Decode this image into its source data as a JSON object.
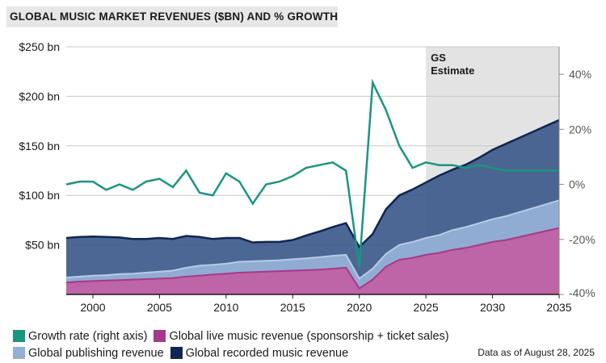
{
  "title": "GLOBAL MUSIC MARKET REVENUES ($BN) AND % GROWTH",
  "footnote": "Data as of August 28, 2025",
  "estimate_label_line1": "GS",
  "estimate_label_line2": "Estimate",
  "colors": {
    "growth": "#1a9580",
    "live": "#c061a3",
    "live_line": "#a8388a",
    "publishing": "#93b0d6",
    "recorded": "#3d5a8a",
    "recorded_line": "#0f2552",
    "estimate_shade": "#e3e3e3"
  },
  "legend": [
    {
      "label": "Growth rate (right axis)",
      "color": "#1a9580"
    },
    {
      "label": "Global live music revenue (sponsorship + ticket sales)",
      "color": "#a8388a"
    },
    {
      "label": "Global publishing revenue",
      "color": "#93b0d6"
    },
    {
      "label": "Global recorded music revenue",
      "color": "#0f2552"
    }
  ],
  "chart_data": {
    "type": "area",
    "title": "GLOBAL MUSIC MARKET REVENUES ($BN) AND % GROWTH",
    "x": [
      1998,
      1999,
      2000,
      2001,
      2002,
      2003,
      2004,
      2005,
      2006,
      2007,
      2008,
      2009,
      2010,
      2011,
      2012,
      2013,
      2014,
      2015,
      2016,
      2017,
      2018,
      2019,
      2020,
      2021,
      2022,
      2023,
      2024,
      2025,
      2026,
      2027,
      2028,
      2029,
      2030,
      2031,
      2032,
      2033,
      2034,
      2035
    ],
    "xlim": [
      1998,
      2035
    ],
    "xticks": [
      2000,
      2005,
      2010,
      2015,
      2020,
      2025,
      2030,
      2035
    ],
    "ylim": [
      0,
      250
    ],
    "yticks": [
      50,
      100,
      150,
      200,
      250
    ],
    "ytick_labels": [
      "$50 bn",
      "$100 bn",
      "$150 bn",
      "$200 bn",
      "$250 bn"
    ],
    "y2lim": [
      -40,
      50
    ],
    "y2ticks": [
      -40,
      -20,
      0,
      20,
      40
    ],
    "y2tick_labels": [
      "-40%",
      "-20%",
      "0%",
      "20%",
      "40%"
    ],
    "grid": true,
    "estimate_range": [
      2025,
      2035
    ],
    "series": [
      {
        "name": "Global live music revenue (sponsorship + ticket sales)",
        "axis": "left",
        "stacked": true,
        "values": [
          12,
          13,
          13.5,
          14,
          14.5,
          15,
          15.5,
          16,
          16.5,
          18,
          19,
          20,
          21,
          22,
          22.5,
          23,
          23.5,
          24,
          24.5,
          25,
          26,
          27,
          6,
          15,
          28,
          35,
          37,
          40,
          42,
          45,
          47,
          50,
          53,
          55,
          58,
          61,
          64,
          67
        ]
      },
      {
        "name": "Global publishing revenue",
        "axis": "left",
        "stacked": true,
        "values": [
          5,
          5,
          5.5,
          5.5,
          6,
          6,
          6.5,
          7,
          7.5,
          9,
          10,
          10,
          10,
          11,
          11,
          11,
          11,
          11.5,
          12,
          12.5,
          13,
          13,
          10,
          11,
          13,
          15,
          16,
          17,
          18,
          20,
          21,
          22,
          23,
          24,
          25,
          26,
          27,
          28
        ]
      },
      {
        "name": "Global recorded music revenue",
        "axis": "left",
        "stacked": true,
        "values": [
          40,
          40,
          39.5,
          38.5,
          37,
          35,
          34,
          34,
          32,
          32,
          29,
          26,
          26,
          24,
          19,
          19,
          18.5,
          19.5,
          23,
          26,
          29,
          32,
          32,
          35,
          45,
          50,
          53,
          56,
          60,
          61,
          63,
          66,
          70,
          73,
          75,
          77,
          79,
          81
        ]
      },
      {
        "name": "Growth rate (right axis)",
        "axis": "right",
        "values": [
          0,
          1,
          1,
          -2,
          0,
          -2,
          1,
          2,
          -1,
          5,
          -3,
          -4,
          4,
          1,
          -7,
          0,
          1,
          3,
          6,
          7,
          8,
          5,
          -30,
          37,
          27,
          14,
          6,
          8,
          7,
          7,
          6,
          7,
          6,
          5,
          5,
          5,
          5,
          5
        ]
      }
    ]
  }
}
